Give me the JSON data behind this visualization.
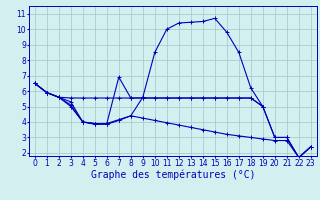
{
  "background_color": "#d4efef",
  "grid_color": "#a0c8c8",
  "line_color": "#0000bb",
  "xlabel": "Graphe des températures (°C)",
  "xlabel_fontsize": 7,
  "tick_fontsize": 5.5,
  "xlim": [
    -0.5,
    23.5
  ],
  "ylim": [
    1.8,
    11.5
  ],
  "yticks": [
    2,
    3,
    4,
    5,
    6,
    7,
    8,
    9,
    10,
    11
  ],
  "xticks": [
    0,
    1,
    2,
    3,
    4,
    5,
    6,
    7,
    8,
    9,
    10,
    11,
    12,
    13,
    14,
    15,
    16,
    17,
    18,
    19,
    20,
    21,
    22,
    23
  ],
  "s1_x": [
    0,
    1,
    2,
    3,
    4,
    5,
    6,
    7,
    8,
    9,
    10,
    11,
    12,
    13,
    14,
    15,
    16,
    17,
    18,
    19
  ],
  "s1_y": [
    6.5,
    5.9,
    5.6,
    5.55,
    5.55,
    5.55,
    5.55,
    5.55,
    5.55,
    5.55,
    5.55,
    5.55,
    5.55,
    5.55,
    5.55,
    5.55,
    5.55,
    5.55,
    5.55,
    5.0
  ],
  "s2_x": [
    0,
    1,
    2,
    3,
    4,
    5,
    6,
    7,
    8,
    9,
    10,
    11,
    12,
    13,
    14,
    15,
    16,
    17,
    18,
    19,
    20,
    21,
    22,
    23
  ],
  "s2_y": [
    6.5,
    5.9,
    5.6,
    5.3,
    4.0,
    3.85,
    3.85,
    4.1,
    4.4,
    5.6,
    8.5,
    10.0,
    10.4,
    10.45,
    10.5,
    10.7,
    9.8,
    8.5,
    6.2,
    5.0,
    3.0,
    3.0,
    1.7,
    2.4
  ],
  "s3_x": [
    0,
    1,
    2,
    3,
    4,
    5,
    6,
    7,
    8,
    9,
    10,
    11,
    12,
    13,
    14,
    15,
    16,
    17,
    18,
    19,
    20,
    21,
    22,
    23
  ],
  "s3_y": [
    6.5,
    5.9,
    5.6,
    5.1,
    4.0,
    3.9,
    3.9,
    6.9,
    5.55,
    5.55,
    5.55,
    5.55,
    5.55,
    5.55,
    5.55,
    5.55,
    5.55,
    5.55,
    5.55,
    5.0,
    3.0,
    3.0,
    1.7,
    2.4
  ],
  "s4_x": [
    0,
    1,
    2,
    3,
    4,
    5,
    6,
    7,
    8,
    9,
    10,
    11,
    12,
    13,
    14,
    15,
    16,
    17,
    18,
    19,
    20,
    21,
    22,
    23
  ],
  "s4_y": [
    6.5,
    5.9,
    5.6,
    5.0,
    4.0,
    3.9,
    3.9,
    4.15,
    4.4,
    4.25,
    4.1,
    3.95,
    3.8,
    3.65,
    3.5,
    3.35,
    3.2,
    3.1,
    3.0,
    2.9,
    2.8,
    2.8,
    1.7,
    2.4
  ]
}
